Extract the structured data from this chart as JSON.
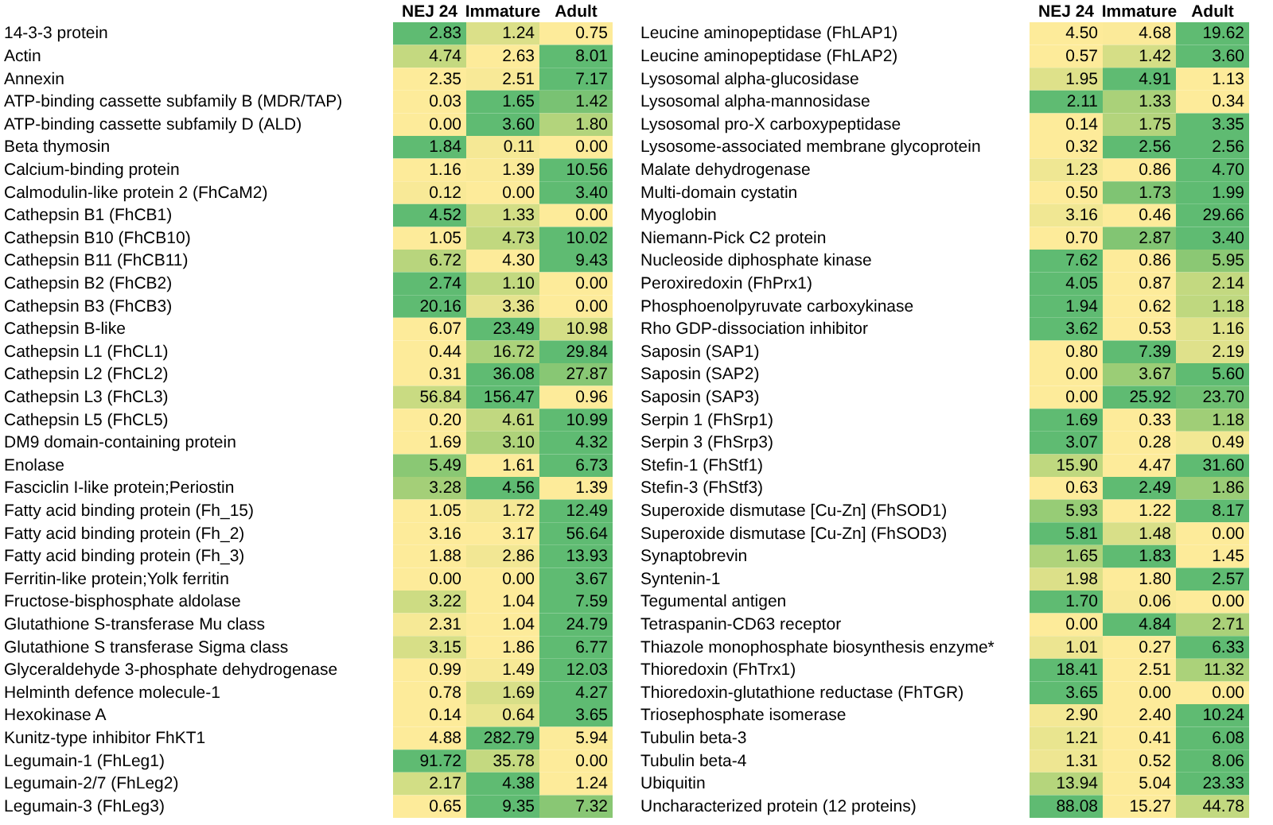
{
  "chart_data": [
    {
      "type": "heatmap",
      "categories": [
        "NEJ 24",
        "Immature",
        "Adult"
      ],
      "y_categories": [
        "14-3-3 protein",
        "Actin",
        "Annexin",
        "ATP-binding cassette subfamily B (MDR/TAP)",
        "ATP-binding cassette subfamily D (ALD)",
        "Beta thymosin",
        "Calcium-binding protein",
        "Calmodulin-like protein 2 (FhCaM2)",
        "Cathepsin B1 (FhCB1)",
        "Cathepsin B10 (FhCB10)",
        "Cathepsin B11 (FhCB11)",
        "Cathepsin B2 (FhCB2)",
        "Cathepsin B3 (FhCB3)",
        "Cathepsin B-like",
        "Cathepsin L1 (FhCL1)",
        "Cathepsin L2 (FhCL2)",
        "Cathepsin L3 (FhCL3)",
        "Cathepsin L5 (FhCL5)",
        "DM9 domain-containing protein",
        "Enolase",
        "Fasciclin I-like protein;Periostin",
        "Fatty acid binding protein (Fh_15)",
        "Fatty acid binding protein (Fh_2)",
        "Fatty acid binding protein (Fh_3)",
        "Ferritin-like protein;Yolk ferritin",
        "Fructose-bisphosphate aldolase",
        "Glutathione S-transferase Mu class",
        "Glutathione S transferase Sigma class",
        "Glyceraldehyde 3-phosphate dehydrogenase",
        "Helminth defence molecule-1",
        "Hexokinase A",
        "Kunitz-type inhibitor FhKT1",
        "Legumain-1 (FhLeg1)",
        "Legumain-2/7 (FhLeg2)",
        "Legumain-3 (FhLeg3)"
      ],
      "cells": [
        [
          2.83,
          1.24,
          0.75
        ],
        [
          4.74,
          2.63,
          8.01
        ],
        [
          2.35,
          2.51,
          7.17
        ],
        [
          0.03,
          1.65,
          1.42
        ],
        [
          0.0,
          3.6,
          1.8
        ],
        [
          1.84,
          0.11,
          0.0
        ],
        [
          1.16,
          1.39,
          10.56
        ],
        [
          0.12,
          0.0,
          3.4
        ],
        [
          4.52,
          1.33,
          0.0
        ],
        [
          1.05,
          4.73,
          10.02
        ],
        [
          6.72,
          4.3,
          9.43
        ],
        [
          2.74,
          1.1,
          0.0
        ],
        [
          20.16,
          3.36,
          0.0
        ],
        [
          6.07,
          23.49,
          10.98
        ],
        [
          0.44,
          16.72,
          29.84
        ],
        [
          0.31,
          36.08,
          27.87
        ],
        [
          56.84,
          156.47,
          0.96
        ],
        [
          0.2,
          4.61,
          10.99
        ],
        [
          1.69,
          3.1,
          4.32
        ],
        [
          5.49,
          1.61,
          6.73
        ],
        [
          3.28,
          4.56,
          1.39
        ],
        [
          1.05,
          1.72,
          12.49
        ],
        [
          3.16,
          3.17,
          56.64
        ],
        [
          1.88,
          2.86,
          13.93
        ],
        [
          0.0,
          0.0,
          3.67
        ],
        [
          3.22,
          1.04,
          7.59
        ],
        [
          2.31,
          1.04,
          24.79
        ],
        [
          3.15,
          1.86,
          6.77
        ],
        [
          0.99,
          1.49,
          12.03
        ],
        [
          0.78,
          1.69,
          4.27
        ],
        [
          0.14,
          0.64,
          3.65
        ],
        [
          4.88,
          282.79,
          5.94
        ],
        [
          91.72,
          35.78,
          0.0
        ],
        [
          2.17,
          4.38,
          1.24
        ],
        [
          0.65,
          9.35,
          7.32
        ]
      ],
      "cell_labels": [
        [
          "2.83",
          "1.24",
          "0.75"
        ],
        [
          "4.74",
          "2.63",
          "8.01"
        ],
        [
          "2.35",
          "2.51",
          "7.17"
        ],
        [
          "0.03",
          "1.65",
          "1.42"
        ],
        [
          "0.00",
          "3.60",
          "1.80"
        ],
        [
          "1.84",
          "0.11",
          "0.00"
        ],
        [
          "1.16",
          "1.39",
          "10.56"
        ],
        [
          "0.12",
          "0.00",
          "3.40"
        ],
        [
          "4.52",
          "1.33",
          "0.00"
        ],
        [
          "1.05",
          "4.73",
          "10.02"
        ],
        [
          "6.72",
          "4.30",
          "9.43"
        ],
        [
          "2.74",
          "1.10",
          "0.00"
        ],
        [
          "20.16",
          "3.36",
          "0.00"
        ],
        [
          "6.07",
          "23.49",
          "10.98"
        ],
        [
          "0.44",
          "16.72",
          "29.84"
        ],
        [
          "0.31",
          "36.08",
          "27.87"
        ],
        [
          "56.84",
          "156.47",
          "0.96"
        ],
        [
          "0.20",
          "4.61",
          "10.99"
        ],
        [
          "1.69",
          "3.10",
          "4.32"
        ],
        [
          "5.49",
          "1.61",
          "6.73"
        ],
        [
          "3.28",
          "4.56",
          "1.39"
        ],
        [
          "1.05",
          "1.72",
          "12.49"
        ],
        [
          "3.16",
          "3.17",
          "56.64"
        ],
        [
          "1.88",
          "2.86",
          "13.93"
        ],
        [
          "0.00",
          "0.00",
          "3.67"
        ],
        [
          "3.22",
          "1.04",
          "7.59"
        ],
        [
          "2.31",
          "1.04",
          "24.79"
        ],
        [
          "3.15",
          "1.86",
          "6.77"
        ],
        [
          "0.99",
          "1.49",
          "12.03"
        ],
        [
          "0.78",
          "1.69",
          "4.27"
        ],
        [
          "0.14",
          "0.64",
          "3.65"
        ],
        [
          "4.88",
          "282.79",
          "5.94"
        ],
        [
          "91.72",
          "35.78",
          "0.00"
        ],
        [
          "2.17",
          "4.38",
          "1.24"
        ],
        [
          "0.65",
          "9.35",
          "7.32"
        ]
      ]
    },
    {
      "type": "heatmap",
      "categories": [
        "NEJ 24",
        "Immature",
        "Adult"
      ],
      "y_categories": [
        "Leucine aminopeptidase (FhLAP1)",
        "Leucine aminopeptidase (FhLAP2)",
        "Lysosomal alpha-glucosidase",
        "Lysosomal alpha-mannosidase",
        "Lysosomal pro-X carboxypeptidase",
        "Lysosome-associated membrane glycoprotein",
        "Malate dehydrogenase",
        "Multi-domain cystatin",
        "Myoglobin",
        "Niemann-Pick C2 protein",
        "Nucleoside diphosphate kinase",
        "Peroxiredoxin (FhPrx1)",
        "Phosphoenolpyruvate carboxykinase",
        "Rho GDP-dissociation inhibitor",
        "Saposin (SAP1)",
        "Saposin (SAP2)",
        "Saposin (SAP3)",
        "Serpin 1 (FhSrp1)",
        "Serpin 3 (FhSrp3)",
        "Stefin-1 (FhStf1)",
        "Stefin-3 (FhStf3)",
        "Superoxide dismutase [Cu-Zn] (FhSOD1)",
        "Superoxide dismutase [Cu-Zn] (FhSOD3)",
        "Synaptobrevin",
        "Syntenin-1",
        "Tegumental antigen",
        "Tetraspanin-CD63 receptor",
        "Thiazole monophosphate biosynthesis enzyme*",
        "Thioredoxin (FhTrx1)",
        "Thioredoxin-glutathione reductase (FhTGR)",
        "Triosephosphate isomerase",
        "Tubulin beta-3",
        "Tubulin beta-4",
        "Ubiquitin",
        "Uncharacterized protein (12 proteins)"
      ],
      "cells": [
        [
          4.5,
          4.68,
          19.62
        ],
        [
          0.57,
          1.42,
          3.6
        ],
        [
          1.95,
          4.91,
          1.13
        ],
        [
          2.11,
          1.33,
          0.34
        ],
        [
          0.14,
          1.75,
          3.35
        ],
        [
          0.32,
          2.56,
          2.56
        ],
        [
          1.23,
          0.86,
          4.7
        ],
        [
          0.5,
          1.73,
          1.99
        ],
        [
          3.16,
          0.46,
          29.66
        ],
        [
          0.7,
          2.87,
          3.4
        ],
        [
          7.62,
          0.86,
          5.95
        ],
        [
          4.05,
          0.87,
          2.14
        ],
        [
          1.94,
          0.62,
          1.18
        ],
        [
          3.62,
          0.53,
          1.16
        ],
        [
          0.8,
          7.39,
          2.19
        ],
        [
          0.0,
          3.67,
          5.6
        ],
        [
          0.0,
          25.92,
          23.7
        ],
        [
          1.69,
          0.33,
          1.18
        ],
        [
          3.07,
          0.28,
          0.49
        ],
        [
          15.9,
          4.47,
          31.6
        ],
        [
          0.63,
          2.49,
          1.86
        ],
        [
          5.93,
          1.22,
          8.17
        ],
        [
          5.81,
          1.48,
          0.0
        ],
        [
          1.65,
          1.83,
          1.45
        ],
        [
          1.98,
          1.8,
          2.57
        ],
        [
          1.7,
          0.06,
          0.0
        ],
        [
          0.0,
          4.84,
          2.71
        ],
        [
          1.01,
          0.27,
          6.33
        ],
        [
          18.41,
          2.51,
          11.32
        ],
        [
          3.65,
          0.0,
          0.0
        ],
        [
          2.9,
          2.4,
          10.24
        ],
        [
          1.21,
          0.41,
          6.08
        ],
        [
          1.31,
          0.52,
          8.06
        ],
        [
          13.94,
          5.04,
          23.33
        ],
        [
          88.08,
          15.27,
          44.78
        ]
      ],
      "cell_labels": [
        [
          "4.50",
          "4.68",
          "19.62"
        ],
        [
          "0.57",
          "1.42",
          "3.60"
        ],
        [
          "1.95",
          "4.91",
          "1.13"
        ],
        [
          "2.11",
          "1.33",
          "0.34"
        ],
        [
          "0.14",
          "1.75",
          "3.35"
        ],
        [
          "0.32",
          "2.56",
          "2.56"
        ],
        [
          "1.23",
          "0.86",
          "4.70"
        ],
        [
          "0.50",
          "1.73",
          "1.99"
        ],
        [
          "3.16",
          "0.46",
          "29.66"
        ],
        [
          "0.70",
          "2.87",
          "3.40"
        ],
        [
          "7.62",
          "0.86",
          "5.95"
        ],
        [
          "4.05",
          "0.87",
          "2.14"
        ],
        [
          "1.94",
          "0.62",
          "1.18"
        ],
        [
          "3.62",
          "0.53",
          "1.16"
        ],
        [
          "0.80",
          "7.39",
          "2.19"
        ],
        [
          "0.00",
          "3.67",
          "5.60"
        ],
        [
          "0.00",
          "25.92",
          "23.70"
        ],
        [
          "1.69",
          "0.33",
          "1.18"
        ],
        [
          "3.07",
          "0.28",
          "0.49"
        ],
        [
          "15.90",
          "4.47",
          "31.60"
        ],
        [
          "0.63",
          "2.49",
          "1.86"
        ],
        [
          "5.93",
          "1.22",
          "8.17"
        ],
        [
          "5.81",
          "1.48",
          "0.00"
        ],
        [
          "1.65",
          "1.83",
          "1.45"
        ],
        [
          "1.98",
          "1.80",
          "2.57"
        ],
        [
          "1.70",
          "0.06",
          "0.00"
        ],
        [
          "0.00",
          "4.84",
          "2.71"
        ],
        [
          "1.01",
          "0.27",
          "6.33"
        ],
        [
          "18.41",
          "2.51",
          "11.32"
        ],
        [
          "3.65",
          "0.00",
          "0.00"
        ],
        [
          "2.90",
          "2.40",
          "10.24"
        ],
        [
          "1.21",
          "0.41",
          "6.08"
        ],
        [
          "1.31",
          "0.52",
          "8.06"
        ],
        [
          "13.94",
          "5.04",
          "23.33"
        ],
        [
          "88.08",
          "15.27",
          "44.78"
        ]
      ]
    }
  ]
}
